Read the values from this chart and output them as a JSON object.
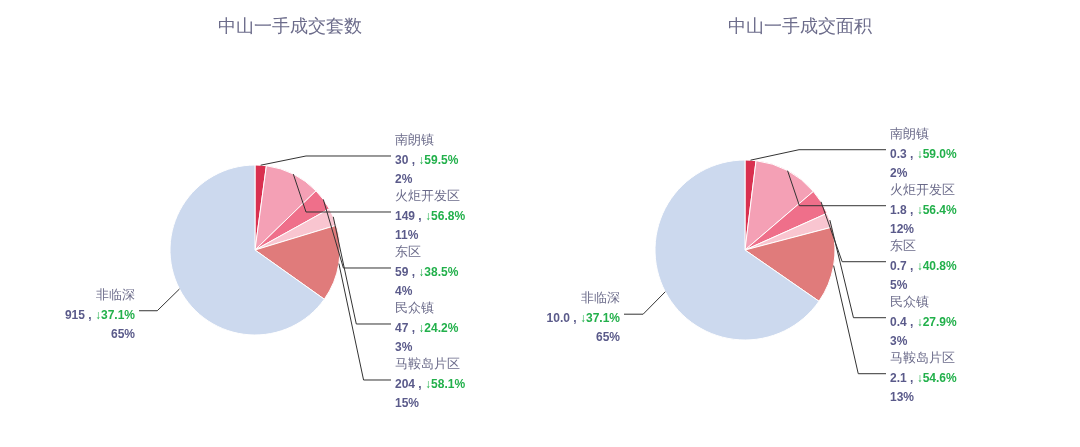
{
  "chart_data": [
    {
      "type": "pie",
      "title": "中山一手成交套数",
      "categories": [
        "南朗镇",
        "火炬开发区",
        "东区",
        "民众镇",
        "马鞍岛片区",
        "非临深"
      ],
      "values": [
        30,
        149,
        59,
        47,
        204,
        915
      ],
      "colors": [
        "#d9304f",
        "#f4a0b5",
        "#ef6f8a",
        "#f9c5d0",
        "#e07b7b",
        "#ccd9ee"
      ],
      "value_labels": [
        "30 , ↓59.5%\n2%",
        "149 , ↓56.8%\n11%",
        "59 , ↓38.5%\n4%",
        "47 , ↓24.2%\n3%",
        "204 , ↓58.1%\n15%",
        "915 , ↓37.1%\n65%"
      ]
    },
    {
      "type": "pie",
      "title": "中山一手成交面积",
      "categories": [
        "南朗镇",
        "火炬开发区",
        "东区",
        "民众镇",
        "马鞍岛片区",
        "非临深"
      ],
      "values": [
        0.3,
        1.8,
        0.7,
        0.4,
        2.1,
        10.0
      ],
      "colors": [
        "#d9304f",
        "#f4a0b5",
        "#ef6f8a",
        "#f9c5d0",
        "#e07b7b",
        "#ccd9ee"
      ],
      "value_labels": [
        "0.3 , ↓59.0%\n2%",
        "1.8 , ↓56.4%\n12%",
        "0.7 , ↓40.8%\n5%",
        "0.4 , ↓27.9%\n3%",
        "2.1 , ↓54.6%\n13%",
        "10.0 , ↓37.1%\n65%"
      ]
    }
  ]
}
